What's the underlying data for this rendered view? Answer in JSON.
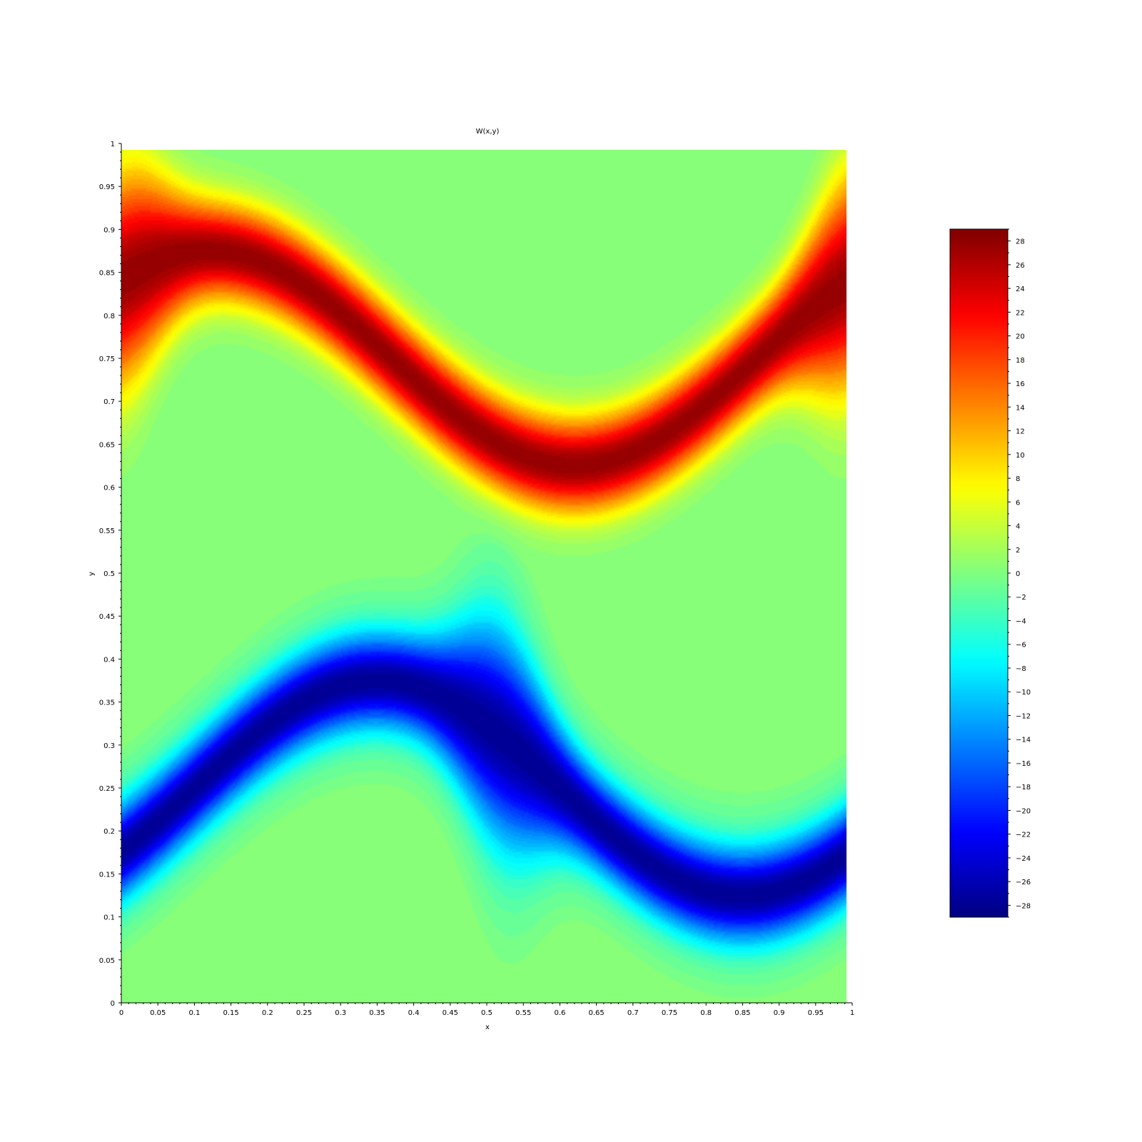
{
  "chart_data": {
    "type": "heatmap",
    "title": "W(x,y)",
    "xlabel": "x",
    "ylabel": "y",
    "xlim": [
      0,
      1
    ],
    "ylim": [
      0,
      1
    ],
    "x_ticks": [
      "0",
      "0.05",
      "0.1",
      "0.15",
      "0.2",
      "0.25",
      "0.3",
      "0.35",
      "0.4",
      "0.45",
      "0.5",
      "0.55",
      "0.6",
      "0.65",
      "0.7",
      "0.75",
      "0.8",
      "0.85",
      "0.9",
      "0.95",
      "1"
    ],
    "y_ticks": [
      "0",
      "0.05",
      "0.1",
      "0.15",
      "0.2",
      "0.25",
      "0.3",
      "0.35",
      "0.4",
      "0.45",
      "0.5",
      "0.55",
      "0.6",
      "0.65",
      "0.7",
      "0.75",
      "0.8",
      "0.85",
      "0.9",
      "0.95",
      "1"
    ],
    "colormap": "jet",
    "colorbar": {
      "range": [
        -29,
        29
      ],
      "ticks": [
        "28",
        "26",
        "24",
        "22",
        "20",
        "18",
        "16",
        "14",
        "12",
        "10",
        "8",
        "6",
        "4",
        "2",
        "0",
        "-2",
        "-4",
        "-6",
        "-8",
        "-10",
        "-12",
        "-14",
        "-16",
        "-18",
        "-20",
        "-22",
        "-24",
        "-26",
        "-28"
      ]
    },
    "features": [
      {
        "sign": "positive",
        "peak": 28,
        "description": "red shear layer centred near y=0.75, rolled into vortex at x≈0 and x≈1"
      },
      {
        "sign": "negative",
        "peak": -28,
        "description": "blue shear layer centred near y=0.25, rolled into vortex at x≈0.5"
      }
    ]
  }
}
